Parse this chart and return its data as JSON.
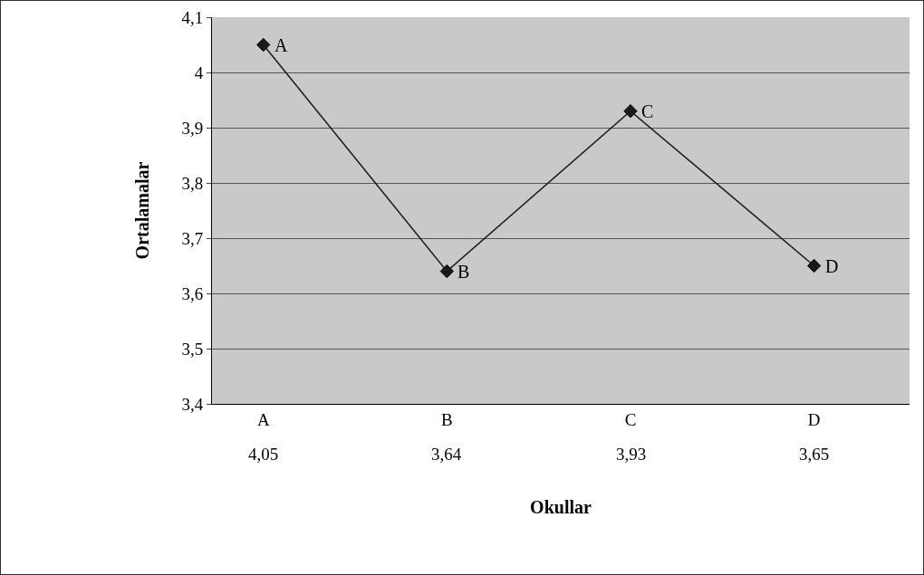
{
  "chart_data": {
    "type": "line",
    "xlabel": "Okullar",
    "ylabel": "Ortalamalar",
    "categories": [
      "A",
      "B",
      "C",
      "D"
    ],
    "series": [
      {
        "color": "#1a1a1a",
        "values": [
          4.05,
          3.64,
          3.93,
          3.65
        ]
      }
    ],
    "value_labels": [
      "4,05",
      "3,64",
      "3,93",
      "3,65"
    ],
    "annotations": [
      {
        "text": "A",
        "x": "A",
        "y": 4.05
      },
      {
        "text": "B",
        "x": "B",
        "y": 3.64
      },
      {
        "text": "C",
        "x": "C",
        "y": 3.93
      },
      {
        "text": "D",
        "x": "D",
        "y": 3.65
      }
    ],
    "ylim": [
      3.4,
      4.1
    ],
    "yticks": [
      {
        "value": 3.4,
        "label": "3,4"
      },
      {
        "value": 3.5,
        "label": "3,5"
      },
      {
        "value": 3.6,
        "label": "3,6"
      },
      {
        "value": 3.7,
        "label": "3,7"
      },
      {
        "value": 3.8,
        "label": "3,8"
      },
      {
        "value": 3.9,
        "label": "3,9"
      },
      4,
      {
        "value": 4.1,
        "label": "4,1"
      }
    ],
    "grid": "y",
    "marker": "diamond",
    "line_style": "solid"
  }
}
